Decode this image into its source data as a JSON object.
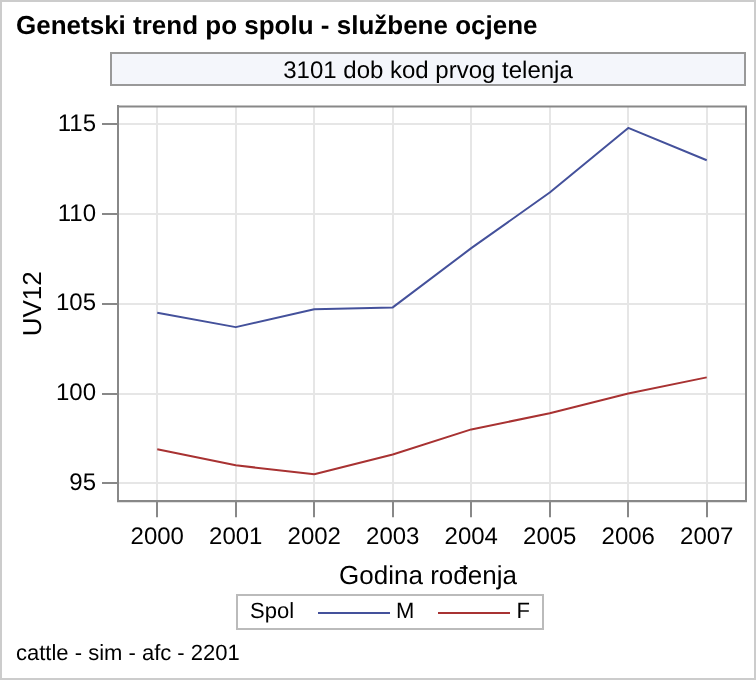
{
  "chart_data": {
    "type": "line",
    "title": "Genetski trend po spolu - službene ocjene",
    "subtitle": "3101 dob kod prvog telenja",
    "xlabel": "Godina rođenja",
    "ylabel": "UV12",
    "legend_title": "Spol",
    "categories": [
      "2000",
      "2001",
      "2002",
      "2003",
      "2004",
      "2005",
      "2006",
      "2007"
    ],
    "series": [
      {
        "name": "M",
        "color": "#44519b",
        "values": [
          104.5,
          103.7,
          104.7,
          104.8,
          108.1,
          111.2,
          114.8,
          113.0
        ]
      },
      {
        "name": "F",
        "color": "#a83232",
        "values": [
          96.9,
          96.0,
          95.5,
          96.6,
          98.0,
          98.9,
          100.0,
          100.9
        ]
      }
    ],
    "ylim": [
      94,
      116
    ],
    "yticks": [
      95,
      100,
      105,
      110,
      115
    ],
    "grid": true,
    "legend": "bottom",
    "marker": "none",
    "line_style": "solid",
    "annotations": [
      "cattle - sim - afc - 2201"
    ]
  }
}
